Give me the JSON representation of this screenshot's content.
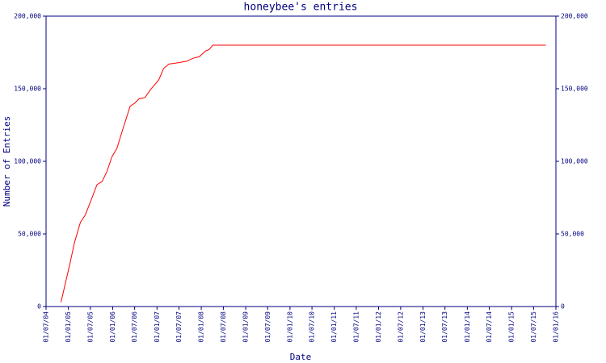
{
  "chart_data": {
    "type": "line",
    "title": "honeybee's entries",
    "x_label": "Date",
    "y_label": "Number of Entries",
    "x": [
      "2004-11-01",
      "2005-01-15",
      "2005-02-20",
      "2005-04-10",
      "2005-05-20",
      "2005-07-01",
      "2005-08-25",
      "2005-10-05",
      "2005-11-15",
      "2005-12-25",
      "2006-02-05",
      "2006-03-25",
      "2006-05-25",
      "2006-07-01",
      "2006-08-05",
      "2006-09-25",
      "2006-11-05",
      "2007-01-15",
      "2007-02-25",
      "2007-04-10",
      "2007-07-01",
      "2007-09-05",
      "2007-10-25",
      "2007-12-15",
      "2008-02-05",
      "2008-03-05",
      "2008-04-05",
      "2015-10-10"
    ],
    "series": [
      {
        "color": "#ff0000",
        "values": [
          3000,
          30000,
          44000,
          58000,
          63000,
          72000,
          84000,
          86000,
          93000,
          103000,
          109000,
          122000,
          138000,
          140000,
          143000,
          144000,
          149000,
          156000,
          164000,
          167000,
          168000,
          169000,
          171000,
          172000,
          176000,
          177000,
          180000,
          180000
        ]
      }
    ],
    "xlim": [
      "2004-07-01",
      "2016-01-01"
    ],
    "xticks": [
      {
        "value": "2004-07-01",
        "label": "01/07/04"
      },
      {
        "value": "2005-01-01",
        "label": "01/01/05"
      },
      {
        "value": "2005-07-01",
        "label": "01/07/05"
      },
      {
        "value": "2006-01-01",
        "label": "01/01/06"
      },
      {
        "value": "2006-07-01",
        "label": "01/07/06"
      },
      {
        "value": "2007-01-01",
        "label": "01/01/07"
      },
      {
        "value": "2007-07-01",
        "label": "01/07/07"
      },
      {
        "value": "2008-01-01",
        "label": "01/01/08"
      },
      {
        "value": "2008-07-01",
        "label": "01/07/08"
      },
      {
        "value": "2009-01-01",
        "label": "01/01/09"
      },
      {
        "value": "2009-07-01",
        "label": "01/07/09"
      },
      {
        "value": "2010-01-01",
        "label": "01/01/10"
      },
      {
        "value": "2010-07-01",
        "label": "01/07/10"
      },
      {
        "value": "2011-01-01",
        "label": "01/01/11"
      },
      {
        "value": "2011-07-01",
        "label": "01/07/11"
      },
      {
        "value": "2012-01-01",
        "label": "01/01/12"
      },
      {
        "value": "2012-07-01",
        "label": "01/07/12"
      },
      {
        "value": "2013-01-01",
        "label": "01/01/13"
      },
      {
        "value": "2013-07-01",
        "label": "01/07/13"
      },
      {
        "value": "2014-01-01",
        "label": "01/01/14"
      },
      {
        "value": "2014-07-01",
        "label": "01/07/14"
      },
      {
        "value": "2015-01-01",
        "label": "01/01/15"
      },
      {
        "value": "2015-07-01",
        "label": "01/07/15"
      },
      {
        "value": "2016-01-01",
        "label": "01/01/16"
      }
    ],
    "ylim": [
      0,
      200000
    ],
    "yticks": [
      0,
      {
        "value": 50000,
        "label": "50,000"
      },
      {
        "value": 100000,
        "label": "100,000"
      },
      {
        "value": 150000,
        "label": "150,000"
      },
      {
        "value": 200000,
        "label": "200,000"
      }
    ],
    "axis_color": "#000080"
  }
}
